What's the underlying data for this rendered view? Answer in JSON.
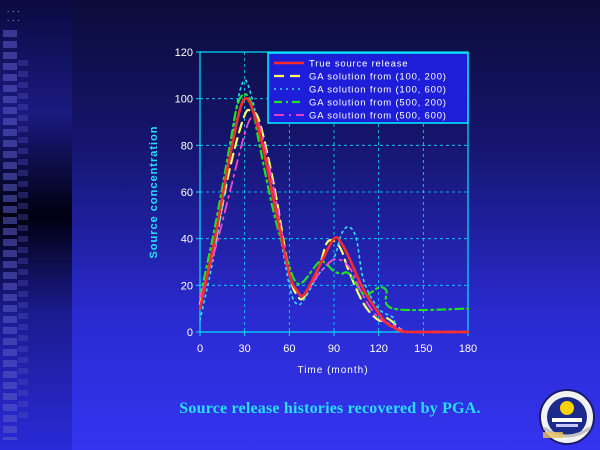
{
  "slide": {
    "caption": "Source release histories recovered by PGA."
  },
  "colors": {
    "axis": "#00e5ff",
    "tick_text": "#ffffff",
    "grid": "#00e5ff",
    "legend_border": "#00e5ff",
    "caption": "#26e0ff"
  },
  "chart_data": {
    "type": "line",
    "xlabel": "Time (month)",
    "ylabel": "Source concentration",
    "xlim": [
      0,
      180
    ],
    "ylim": [
      0,
      120
    ],
    "xticks": [
      0,
      30,
      60,
      90,
      120,
      150,
      180
    ],
    "yticks": [
      0,
      20,
      40,
      60,
      80,
      100,
      120
    ],
    "grid": true,
    "legend_position": "top-right",
    "series": [
      {
        "name": "True source release",
        "color": "#ff2a2a",
        "style": "solid",
        "width": 2.6,
        "x": [
          0,
          10,
          20,
          30,
          40,
          50,
          60,
          65,
          70,
          80,
          90,
          95,
          100,
          110,
          120,
          125,
          130,
          140,
          180
        ],
        "y": [
          10,
          40,
          75,
          100,
          85,
          55,
          25,
          18,
          16,
          28,
          40,
          38,
          32,
          18,
          8,
          4,
          2,
          0,
          0
        ]
      },
      {
        "name": "GA solution from (100, 200)",
        "color": "#ffff66",
        "style": "longdash",
        "width": 2.2,
        "x": [
          0,
          10,
          20,
          30,
          35,
          40,
          50,
          60,
          65,
          70,
          80,
          85,
          90,
          95,
          100,
          110,
          120,
          125,
          130,
          135,
          140,
          180
        ],
        "y": [
          12,
          38,
          70,
          93,
          94,
          90,
          62,
          25,
          16,
          15,
          28,
          38,
          39,
          35,
          26,
          12,
          5,
          6,
          4,
          1,
          0,
          0
        ]
      },
      {
        "name": "GA solution from (100, 600)",
        "color": "#33ddff",
        "style": "dot",
        "width": 1.6,
        "x": [
          0,
          10,
          20,
          25,
          30,
          35,
          40,
          50,
          60,
          65,
          70,
          80,
          90,
          95,
          100,
          105,
          110,
          120,
          130,
          135,
          180
        ],
        "y": [
          5,
          35,
          75,
          98,
          108,
          100,
          85,
          55,
          20,
          12,
          14,
          25,
          32,
          42,
          45,
          40,
          22,
          10,
          6,
          0,
          0
        ]
      },
      {
        "name": "GA solution from (500, 200)",
        "color": "#22e022",
        "style": "dashdot",
        "width": 2.2,
        "x": [
          0,
          10,
          20,
          25,
          30,
          35,
          40,
          50,
          60,
          65,
          70,
          80,
          85,
          90,
          95,
          100,
          110,
          115,
          120,
          125,
          130,
          180
        ],
        "y": [
          15,
          45,
          80,
          97,
          102,
          97,
          80,
          50,
          28,
          21,
          22,
          30,
          29,
          26,
          25,
          25,
          16,
          17,
          19,
          18,
          10,
          10
        ]
      },
      {
        "name": "GA solution from (500, 600)",
        "color": "#ff44cc",
        "style": "dashdot2",
        "width": 1.8,
        "x": [
          0,
          10,
          20,
          30,
          35,
          40,
          50,
          60,
          65,
          70,
          80,
          90,
          100,
          110,
          120,
          130,
          135,
          140,
          180
        ],
        "y": [
          15,
          35,
          60,
          85,
          92,
          88,
          60,
          25,
          18,
          16,
          25,
          31,
          28,
          15,
          6,
          3,
          1,
          0,
          0
        ]
      }
    ]
  }
}
